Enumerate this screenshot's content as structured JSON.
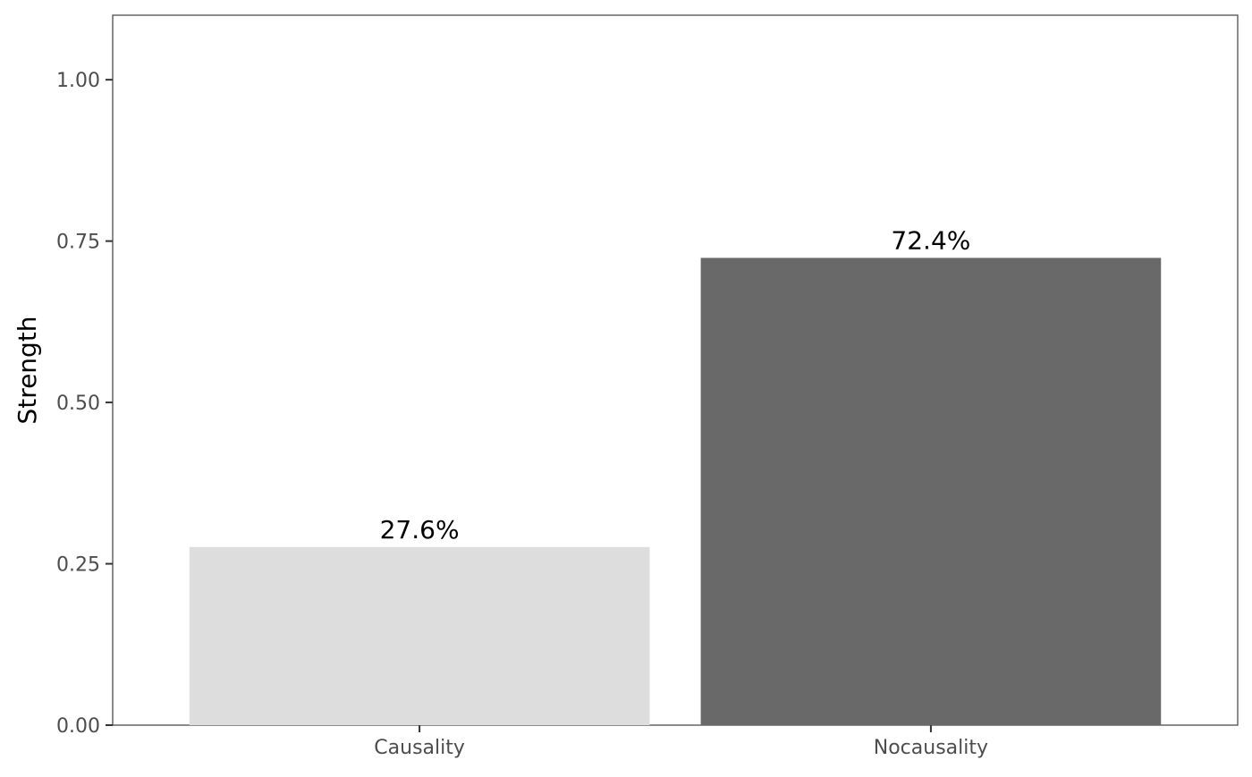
{
  "chart_data": {
    "type": "bar",
    "title": "",
    "xlabel": "",
    "ylabel": "Strength",
    "ylim": [
      0,
      1.1
    ],
    "yticks": [
      0,
      0.25,
      0.5,
      0.75,
      1.0
    ],
    "ytick_labels": [
      "0.00",
      "0.25",
      "0.50",
      "0.75",
      "1.00"
    ],
    "categories": [
      "Causality",
      "Nocausality"
    ],
    "values": [
      0.276,
      0.724
    ],
    "data_labels": [
      "27.6%",
      "72.4%"
    ],
    "bar_colors": [
      "#dddddd",
      "#696969"
    ],
    "grid": false,
    "legend": "none"
  }
}
